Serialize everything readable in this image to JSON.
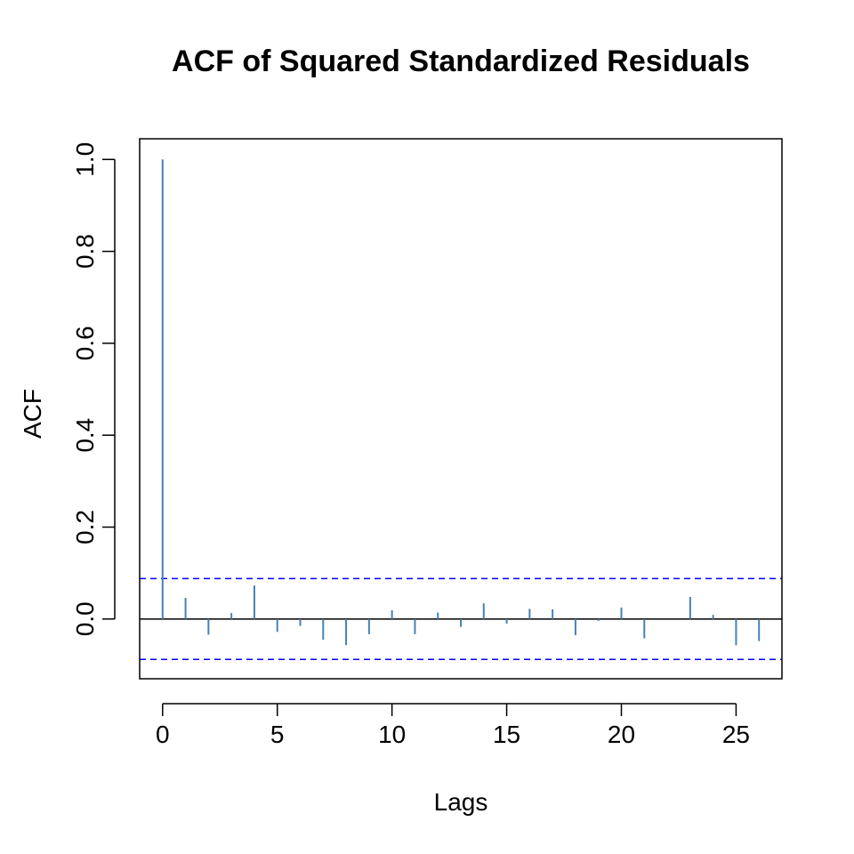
{
  "chart_data": {
    "type": "bar",
    "title": "ACF of Squared Standardized Residuals",
    "xlabel": "Lags",
    "ylabel": "ACF",
    "x": [
      0,
      1,
      2,
      3,
      4,
      5,
      6,
      7,
      8,
      9,
      10,
      11,
      12,
      13,
      14,
      15,
      16,
      17,
      18,
      19,
      20,
      21,
      22,
      23,
      24,
      25,
      26
    ],
    "values": [
      1.0,
      0.046,
      -0.034,
      0.013,
      0.073,
      -0.028,
      -0.015,
      -0.045,
      -0.057,
      -0.033,
      0.019,
      -0.033,
      0.014,
      -0.017,
      0.034,
      -0.01,
      0.022,
      0.021,
      -0.035,
      -0.004,
      0.025,
      -0.042,
      0.0,
      0.048,
      0.009,
      -0.057,
      -0.048
    ],
    "confidence_bound": 0.088,
    "xlim": [
      -1,
      27
    ],
    "ylim": [
      -0.13,
      1.045
    ],
    "x_ticks": [
      0,
      5,
      10,
      15,
      20,
      25
    ],
    "y_ticks": [
      0.0,
      0.2,
      0.4,
      0.6,
      0.8,
      1.0
    ],
    "y_tick_labels": [
      "0.0",
      "0.2",
      "0.4",
      "0.6",
      "0.8",
      "1.0"
    ],
    "grid": false,
    "bar_color": "#4682b4",
    "bound_color": "#0000ff"
  }
}
